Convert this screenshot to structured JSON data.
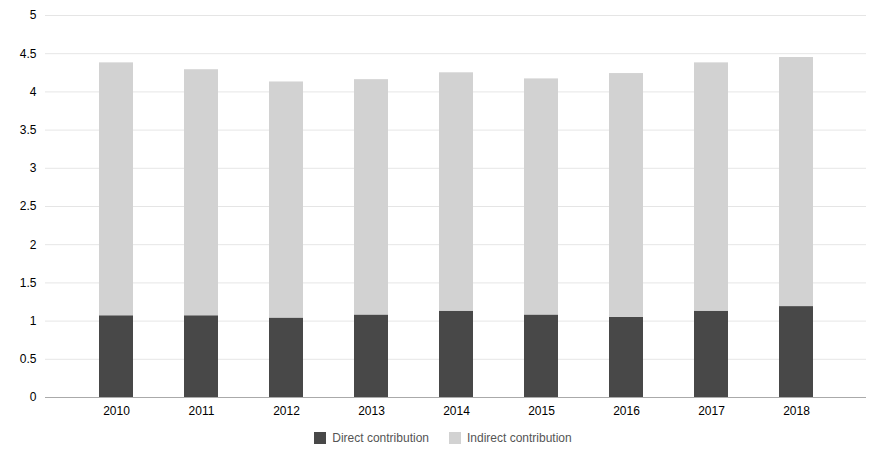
{
  "chart_data": {
    "type": "bar",
    "stacked": true,
    "categories": [
      "2010",
      "2011",
      "2012",
      "2013",
      "2014",
      "2015",
      "2016",
      "2017",
      "2018"
    ],
    "series": [
      {
        "name": "Direct contribution",
        "color": "#484848",
        "values": [
          1.07,
          1.07,
          1.04,
          1.08,
          1.13,
          1.08,
          1.05,
          1.13,
          1.19
        ]
      },
      {
        "name": "Indirect contribution",
        "color": "#d2d2d2",
        "values": [
          3.31,
          3.22,
          3.09,
          3.08,
          3.12,
          3.09,
          3.19,
          3.25,
          3.26
        ]
      }
    ],
    "ylim": [
      0,
      5
    ],
    "yticks": [
      0,
      0.5,
      1,
      1.5,
      2,
      2.5,
      3,
      3.5,
      4,
      4.5,
      5
    ],
    "grid": true,
    "legend": "bottom"
  }
}
